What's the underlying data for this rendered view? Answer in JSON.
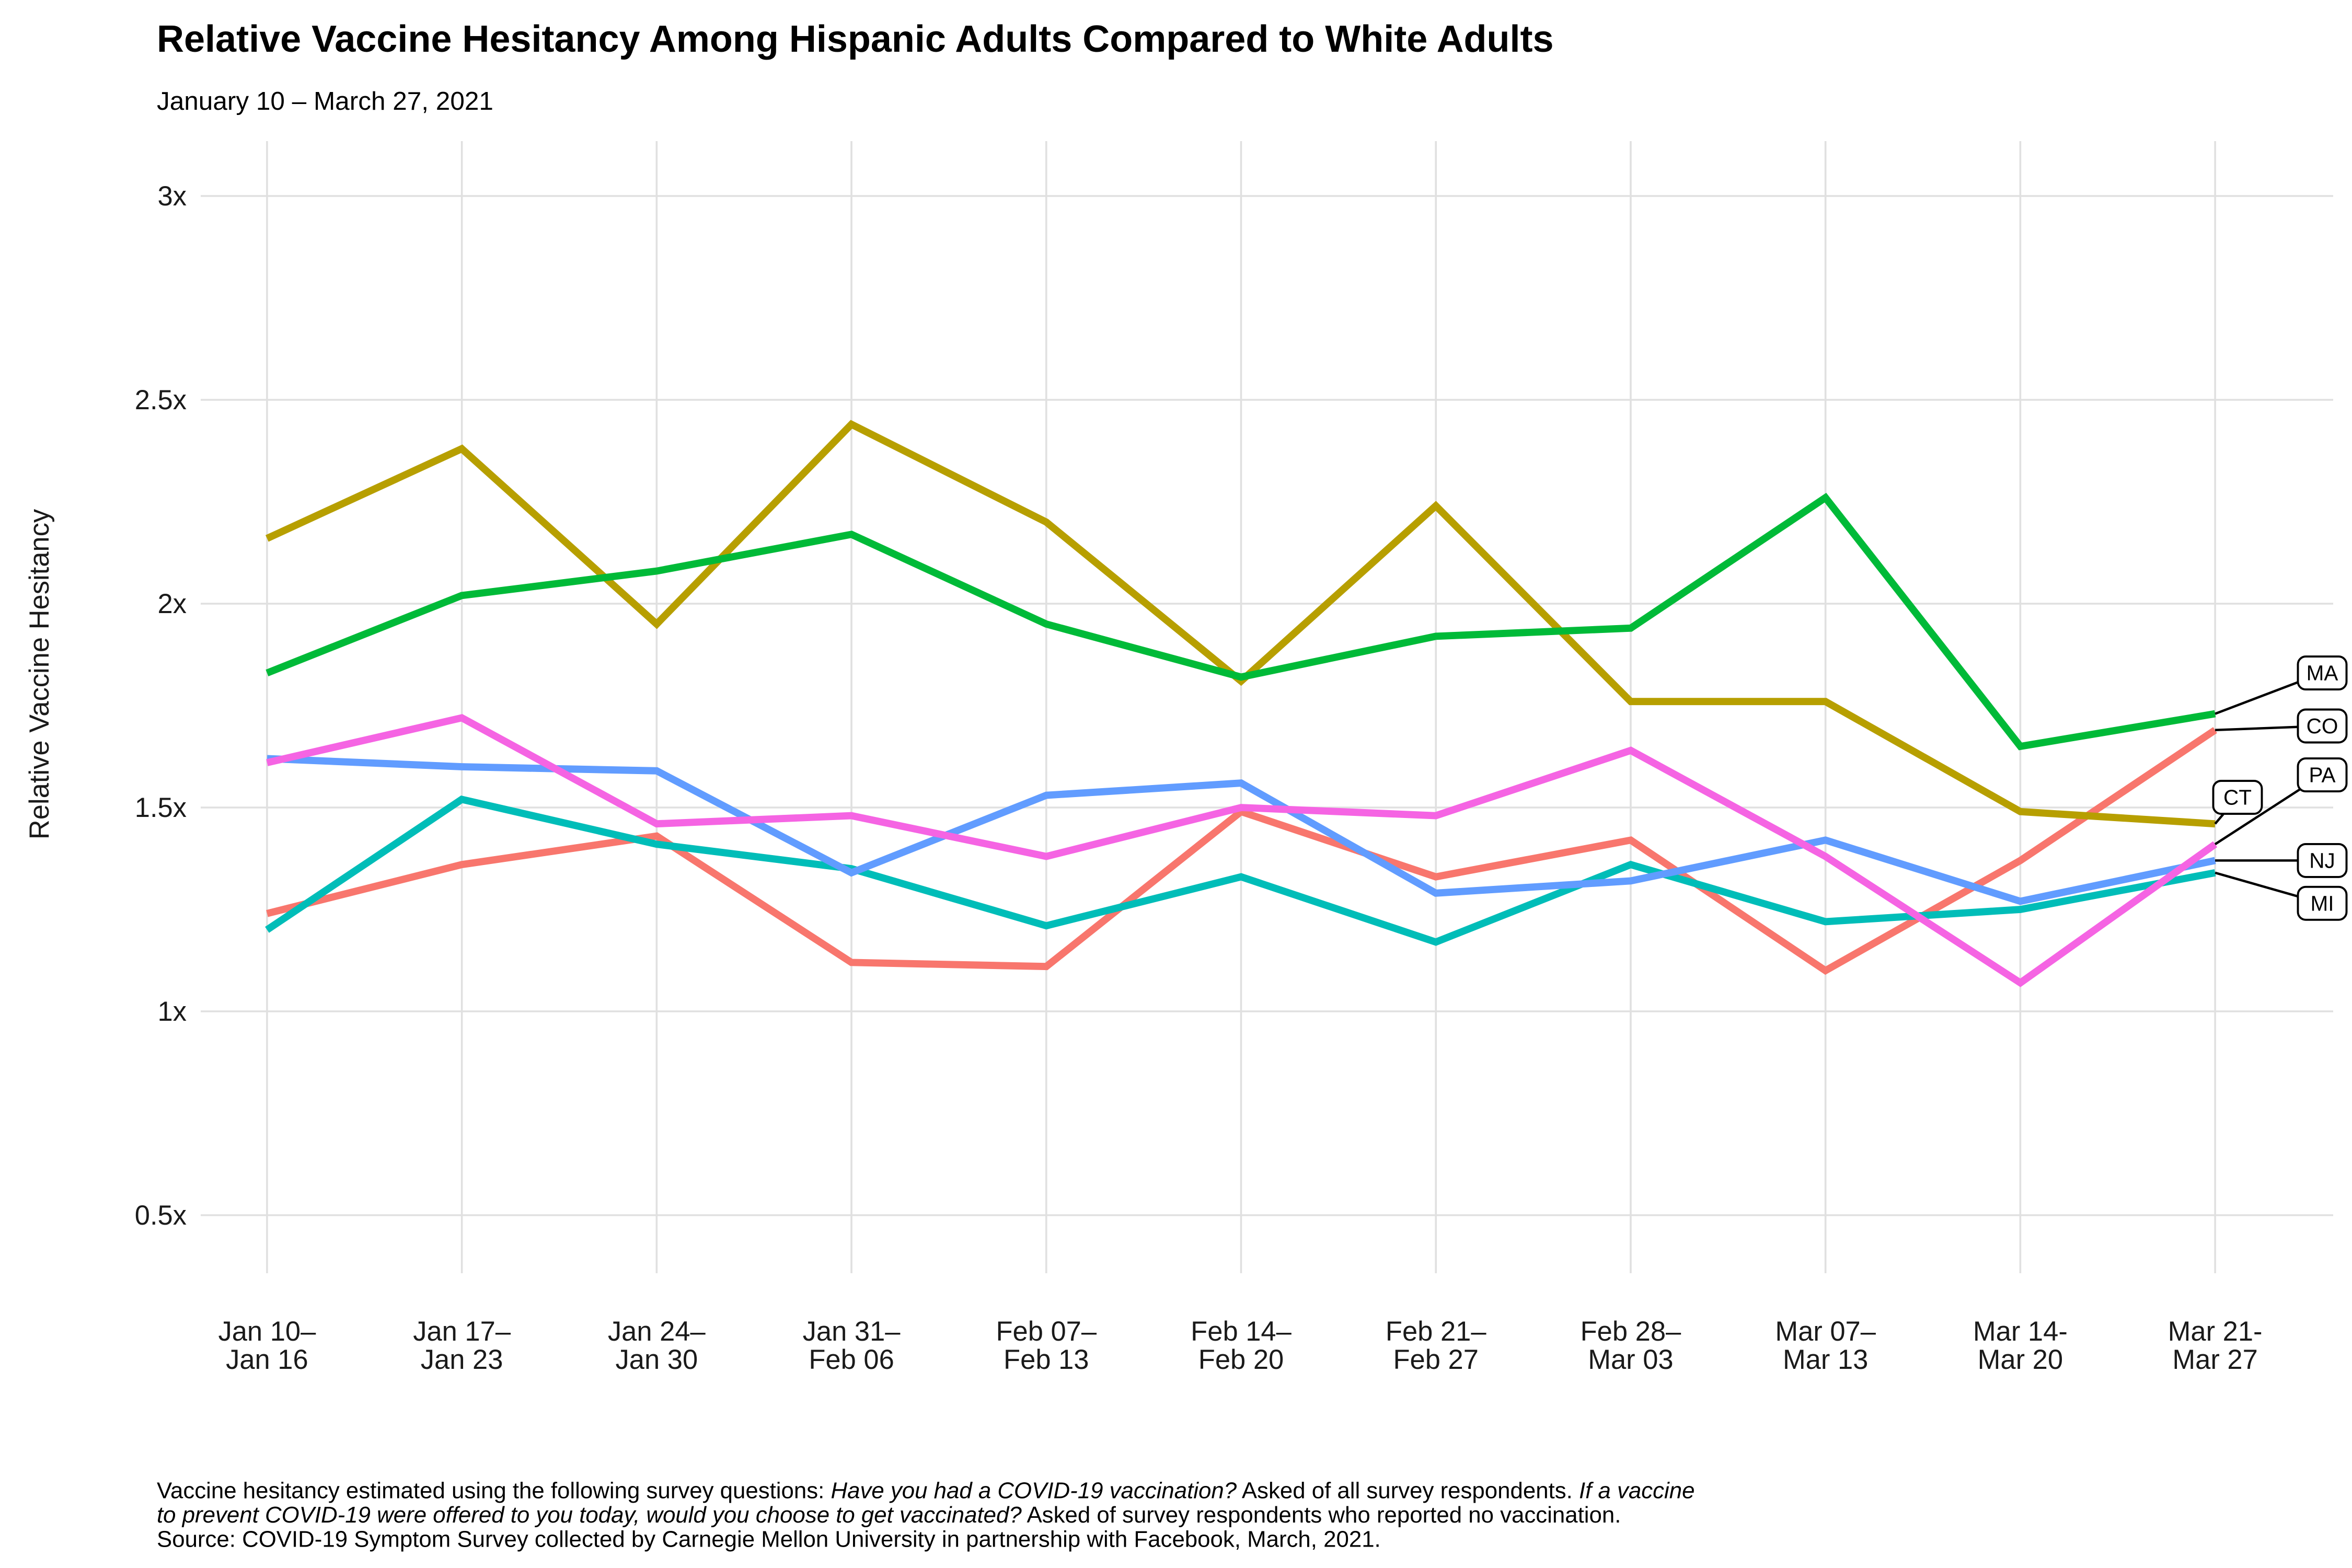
{
  "header": {
    "title": "Relative Vaccine Hesitancy Among Hispanic Adults Compared to White Adults",
    "subtitle": "January 10 – March 27, 2021"
  },
  "y_axis": {
    "label": "Relative Vaccine Hesitancy",
    "ticks": [
      {
        "v": 3.0,
        "label": "3x"
      },
      {
        "v": 2.5,
        "label": "2.5x"
      },
      {
        "v": 2.0,
        "label": "2x"
      },
      {
        "v": 1.5,
        "label": "1.5x"
      },
      {
        "v": 1.0,
        "label": "1x"
      },
      {
        "v": 0.5,
        "label": "0.5x"
      }
    ]
  },
  "x_axis": {
    "ticks": [
      [
        "Jan 10–",
        "Jan 16"
      ],
      [
        "Jan 17–",
        "Jan 23"
      ],
      [
        "Jan 24–",
        "Jan 30"
      ],
      [
        "Jan 31–",
        "Feb 06"
      ],
      [
        "Feb 07–",
        "Feb 13"
      ],
      [
        "Feb 14–",
        "Feb 20"
      ],
      [
        "Feb 21–",
        "Feb 27"
      ],
      [
        "Feb 28–",
        "Mar 03"
      ],
      [
        "Mar 07–",
        "Mar 13"
      ],
      [
        "Mar 14-",
        "Mar 20"
      ],
      [
        "Mar 21-",
        "Mar 27"
      ]
    ]
  },
  "footnote": {
    "lines": [
      [
        {
          "text": "Vaccine hesitancy estimated using the following survey questions: ",
          "italic": false
        },
        {
          "text": "Have you had a COVID-19 vaccination?",
          "italic": true
        },
        {
          "text": " Asked of all survey respondents. ",
          "italic": false
        },
        {
          "text": "If a vaccine",
          "italic": true
        }
      ],
      [
        {
          "text": "to prevent COVID-19 were offered to you today, would you choose to get vaccinated?",
          "italic": true
        },
        {
          "text": " Asked of survey respondents who reported no vaccination.",
          "italic": false
        }
      ],
      [
        {
          "text": "Source: COVID-19 Symptom Survey collected by Carnegie Mellon University in partnership with Facebook, March, 2021.",
          "italic": false
        }
      ]
    ]
  },
  "colors": {
    "background": "#FFFFFF",
    "gridline": "#E0E0E0",
    "connector": "#000000",
    "label_box_fill": "#FFFFFF",
    "label_box_border": "#000000"
  },
  "chart_data": {
    "type": "line",
    "title": "Relative Vaccine Hesitancy Among Hispanic Adults Compared to White Adults",
    "subtitle": "January 10 – March 27, 2021",
    "xlabel": "",
    "ylabel": "Relative Vaccine Hesitancy",
    "ylim": [
      0.5,
      3.0
    ],
    "grid": true,
    "legend_position": "right-end-labels",
    "categories": [
      "Jan 10–Jan 16",
      "Jan 17–Jan 23",
      "Jan 24–Jan 30",
      "Jan 31–Feb 06",
      "Feb 07–Feb 13",
      "Feb 14–Feb 20",
      "Feb 21–Feb 27",
      "Feb 28–Mar 03",
      "Mar 07–Mar 13",
      "Mar 14-Mar 20",
      "Mar 21-Mar 27"
    ],
    "series": [
      {
        "name": "CO",
        "color": "#F8766D",
        "label_v": 1.7,
        "label_inset": false,
        "values": [
          1.24,
          1.36,
          1.43,
          1.12,
          1.11,
          1.49,
          1.33,
          1.42,
          1.1,
          1.37,
          1.69
        ]
      },
      {
        "name": "CT",
        "color": "#B79F00",
        "label_v": 1.525,
        "label_inset": true,
        "values": [
          2.16,
          2.38,
          1.95,
          2.44,
          2.2,
          1.81,
          2.24,
          1.76,
          1.76,
          1.49,
          1.46
        ]
      },
      {
        "name": "MA",
        "color": "#00BA38",
        "label_v": 1.83,
        "label_inset": false,
        "values": [
          1.83,
          2.02,
          2.08,
          2.17,
          1.95,
          1.82,
          1.92,
          1.94,
          2.26,
          1.65,
          1.73
        ]
      },
      {
        "name": "MI",
        "color": "#00BDB8",
        "label_v": 1.265,
        "label_inset": false,
        "values": [
          1.2,
          1.52,
          1.41,
          1.35,
          1.21,
          1.33,
          1.17,
          1.36,
          1.22,
          1.25,
          1.34
        ]
      },
      {
        "name": "NJ",
        "color": "#619CFF",
        "label_v": 1.37,
        "label_inset": false,
        "values": [
          1.62,
          1.6,
          1.59,
          1.34,
          1.53,
          1.56,
          1.29,
          1.32,
          1.42,
          1.27,
          1.37
        ]
      },
      {
        "name": "PA",
        "color": "#F564E3",
        "label_v": 1.58,
        "label_inset": false,
        "values": [
          1.61,
          1.72,
          1.46,
          1.48,
          1.38,
          1.5,
          1.48,
          1.64,
          1.38,
          1.07,
          1.41
        ]
      }
    ]
  }
}
